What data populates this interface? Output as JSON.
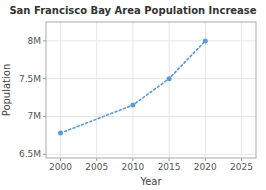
{
  "chart_data": {
    "type": "line",
    "title": "San Francisco Bay Area Population Increase",
    "xlabel": "Year",
    "ylabel": "Population",
    "x": [
      2000,
      2010,
      2015,
      2020
    ],
    "values": [
      6780000,
      7150000,
      7500000,
      8000000
    ],
    "color": "#5b9bd5",
    "marker": "circle",
    "line_style": "dotted",
    "xlim": [
      1998,
      2027
    ],
    "ylim": [
      6450000,
      8250000
    ],
    "xticks": [
      2000,
      2005,
      2010,
      2015,
      2020,
      2025
    ],
    "yticks": [
      {
        "value": 6500000,
        "label": "6.5M"
      },
      {
        "value": 7000000,
        "label": "7M"
      },
      {
        "value": 7500000,
        "label": "7.5M"
      },
      {
        "value": 8000000,
        "label": "8M"
      }
    ],
    "grid": true
  }
}
